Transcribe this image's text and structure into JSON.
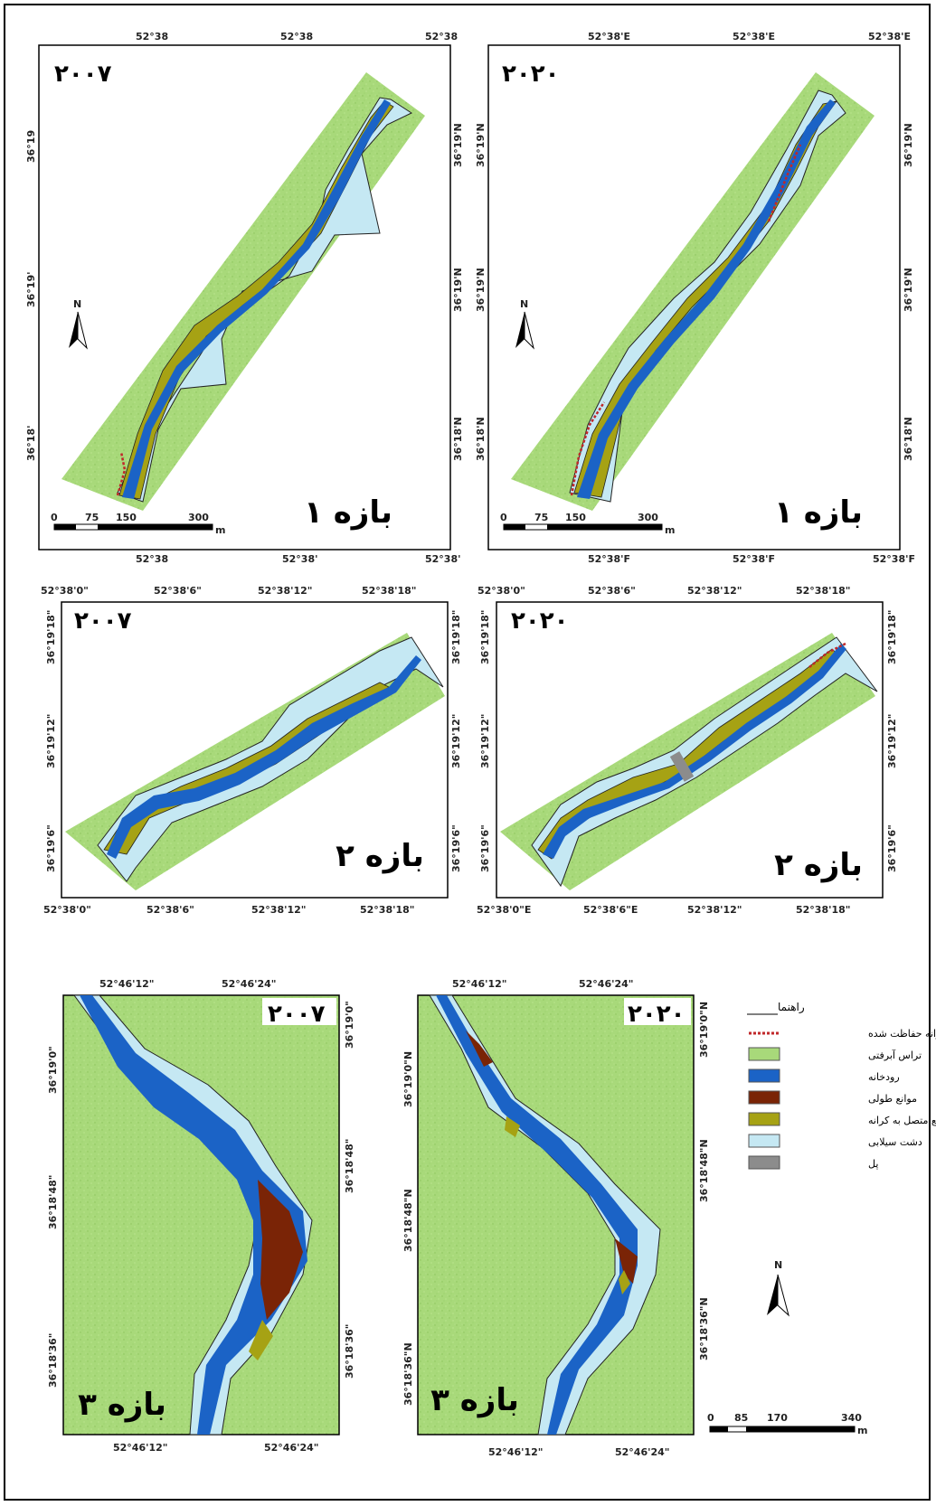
{
  "colors": {
    "terrace": "#a8d97a",
    "river": "#1b63c6",
    "long_bar": "#7a2406",
    "bank_bar": "#a6a214",
    "floodplain": "#c5e8f3",
    "bridge": "#8c8c8c",
    "protected_bank": "#c0282a"
  },
  "maps": [
    {
      "id": "m1",
      "year": "۲۰۰۷",
      "reach": "بازه ۱",
      "top_ticks": [
        "52°38",
        "52°38",
        "52°38"
      ],
      "bottom_ticks": [
        "52°38",
        "52°38'",
        "52°38'"
      ],
      "left_ticks": [
        "36°19",
        "36°19'",
        "36°18'"
      ],
      "right_ticks": [
        "36°19'N",
        "36°19'N",
        "36°18'N"
      ],
      "scale": [
        "0",
        "75",
        "150",
        "300"
      ],
      "scale_unit": "m",
      "north": "N"
    },
    {
      "id": "m2",
      "year": "۲۰۲۰",
      "reach": "بازه ۱",
      "top_ticks": [
        "52°38'E",
        "52°38'E",
        "52°38'E"
      ],
      "bottom_ticks": [
        "52°38'F",
        "52°38'F",
        "52°38'F"
      ],
      "left_ticks": [
        "36°19'N",
        "36°19'N",
        "36°18'N"
      ],
      "right_ticks": [
        "36°19'N",
        "36°19'N",
        "36°18'N"
      ],
      "scale": [
        "0",
        "75",
        "150",
        "300"
      ],
      "scale_unit": "m",
      "north": "N"
    },
    {
      "id": "m3",
      "year": "۲۰۰۷",
      "reach": "بازه ۲",
      "top_ticks": [
        "52°38'0\"",
        "52°38'6\"",
        "52°38'12\"",
        "52°38'18\""
      ],
      "bottom_ticks": [
        "52°38'0\"",
        "52°38'6\"",
        "52°38'12\"",
        "52°38'18\""
      ],
      "left_ticks": [
        "36°19'18\"",
        "36°19'12\"",
        "36°19'6\""
      ],
      "right_ticks": [
        "36°19'18\"",
        "36°19'12\"",
        "36°19'6\""
      ]
    },
    {
      "id": "m4",
      "year": "۲۰۲۰",
      "reach": "بازه ۲",
      "top_ticks": [
        "52°38'0\"",
        "52°38'6\"",
        "52°38'12\"",
        "52°38'18\""
      ],
      "bottom_ticks": [
        "52°38'0\"E",
        "52°38'6\"E",
        "52°38'12\"",
        "52°38'18\""
      ],
      "left_ticks": [
        "36°19'18\"",
        "36°19'12\"",
        "36°19'6\""
      ],
      "right_ticks": [
        "36°19'18\"",
        "36°19'12\"",
        "36°19'6\""
      ]
    },
    {
      "id": "m5",
      "year": "۲۰۰۷",
      "reach": "بازه ۳",
      "top_ticks": [
        "52°46'12\"",
        "52°46'24\""
      ],
      "bottom_ticks": [
        "52°46'12\"",
        "52°46'24\""
      ],
      "left_ticks": [
        "36°19'0\"",
        "36°18'48\"",
        "36°18'36\""
      ],
      "right_ticks": [
        "36°19'0\"",
        "36°18'48\"",
        "36°18'36\""
      ]
    },
    {
      "id": "m6",
      "year": "۲۰۲۰",
      "reach": "بازه ۳",
      "top_ticks": [
        "52°46'12\"",
        "52°46'24\""
      ],
      "bottom_ticks": [
        "52°46'12\"",
        "52°46'24\""
      ],
      "left_ticks": [
        "36°19'0\"N",
        "36°18'48\"N",
        "36°18'36\"N"
      ],
      "right_ticks": [
        "36°19'0\"N",
        "36°18'48\"N",
        "36°18'36\"N"
      ]
    }
  ],
  "legend": {
    "title": "راهنما",
    "items": [
      {
        "key": "protected_bank",
        "label": "کرانه حفاظت شده",
        "style": "line"
      },
      {
        "key": "terrace",
        "label": "تراس آبرفتی",
        "style": "box"
      },
      {
        "key": "river",
        "label": "رودخانه",
        "style": "box"
      },
      {
        "key": "long_bar",
        "label": "موانع طولی",
        "style": "box"
      },
      {
        "key": "bank_bar",
        "label": "موانع متصل به کرانه",
        "style": "box"
      },
      {
        "key": "floodplain",
        "label": "دشت سیلابی",
        "style": "box"
      },
      {
        "key": "bridge",
        "label": "پل",
        "style": "box"
      }
    ]
  },
  "bottom_scale": {
    "labels": [
      "0",
      "85",
      "170",
      "340"
    ],
    "unit": "m",
    "north": "N"
  }
}
